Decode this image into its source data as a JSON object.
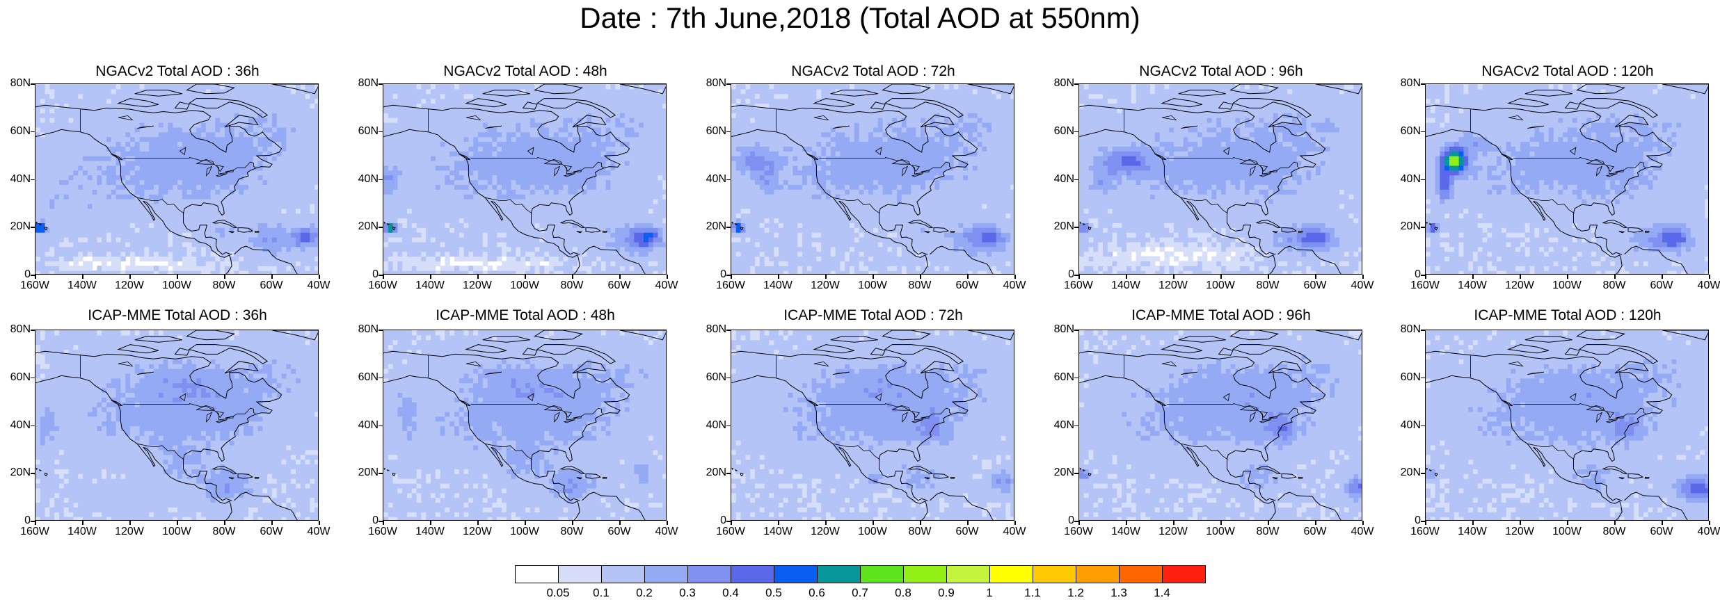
{
  "title": "Date : 7th June,2018 (Total AOD at 550nm)",
  "y_ticks": [
    "80N",
    "60N",
    "40N",
    "20N",
    "0"
  ],
  "x_ticks": [
    "160W",
    "140W",
    "120W",
    "100W",
    "80W",
    "60W",
    "40W"
  ],
  "panels": [
    {
      "title": "NGACv2 Total AOD : 36h",
      "model": "NGACv2",
      "lead": "36h"
    },
    {
      "title": "NGACv2 Total AOD : 48h",
      "model": "NGACv2",
      "lead": "48h"
    },
    {
      "title": "NGACv2 Total AOD : 72h",
      "model": "NGACv2",
      "lead": "72h"
    },
    {
      "title": "NGACv2 Total AOD : 96h",
      "model": "NGACv2",
      "lead": "96h"
    },
    {
      "title": "NGACv2 Total AOD : 120h",
      "model": "NGACv2",
      "lead": "120h"
    },
    {
      "title": "ICAP-MME Total AOD : 36h",
      "model": "ICAP-MME",
      "lead": "36h"
    },
    {
      "title": "ICAP-MME Total AOD : 48h",
      "model": "ICAP-MME",
      "lead": "48h"
    },
    {
      "title": "ICAP-MME Total AOD : 72h",
      "model": "ICAP-MME",
      "lead": "72h"
    },
    {
      "title": "ICAP-MME Total AOD : 96h",
      "model": "ICAP-MME",
      "lead": "96h"
    },
    {
      "title": "ICAP-MME Total AOD : 120h",
      "model": "ICAP-MME",
      "lead": "120h"
    }
  ],
  "colorbar": {
    "labels": [
      "0.05",
      "0.1",
      "0.2",
      "0.3",
      "0.4",
      "0.5",
      "0.6",
      "0.7",
      "0.8",
      "0.9",
      "1",
      "1.1",
      "1.2",
      "1.3",
      "1.4"
    ],
    "colors": [
      "#ffffff",
      "#d6defa",
      "#b4c4f6",
      "#94aaf4",
      "#7f90f0",
      "#5a68ea",
      "#0a5ef2",
      "#07969a",
      "#5ee31c",
      "#92f014",
      "#c4f53c",
      "#ffff00",
      "#ffc800",
      "#ff9e00",
      "#ff6600",
      "#ff2010"
    ]
  }
}
